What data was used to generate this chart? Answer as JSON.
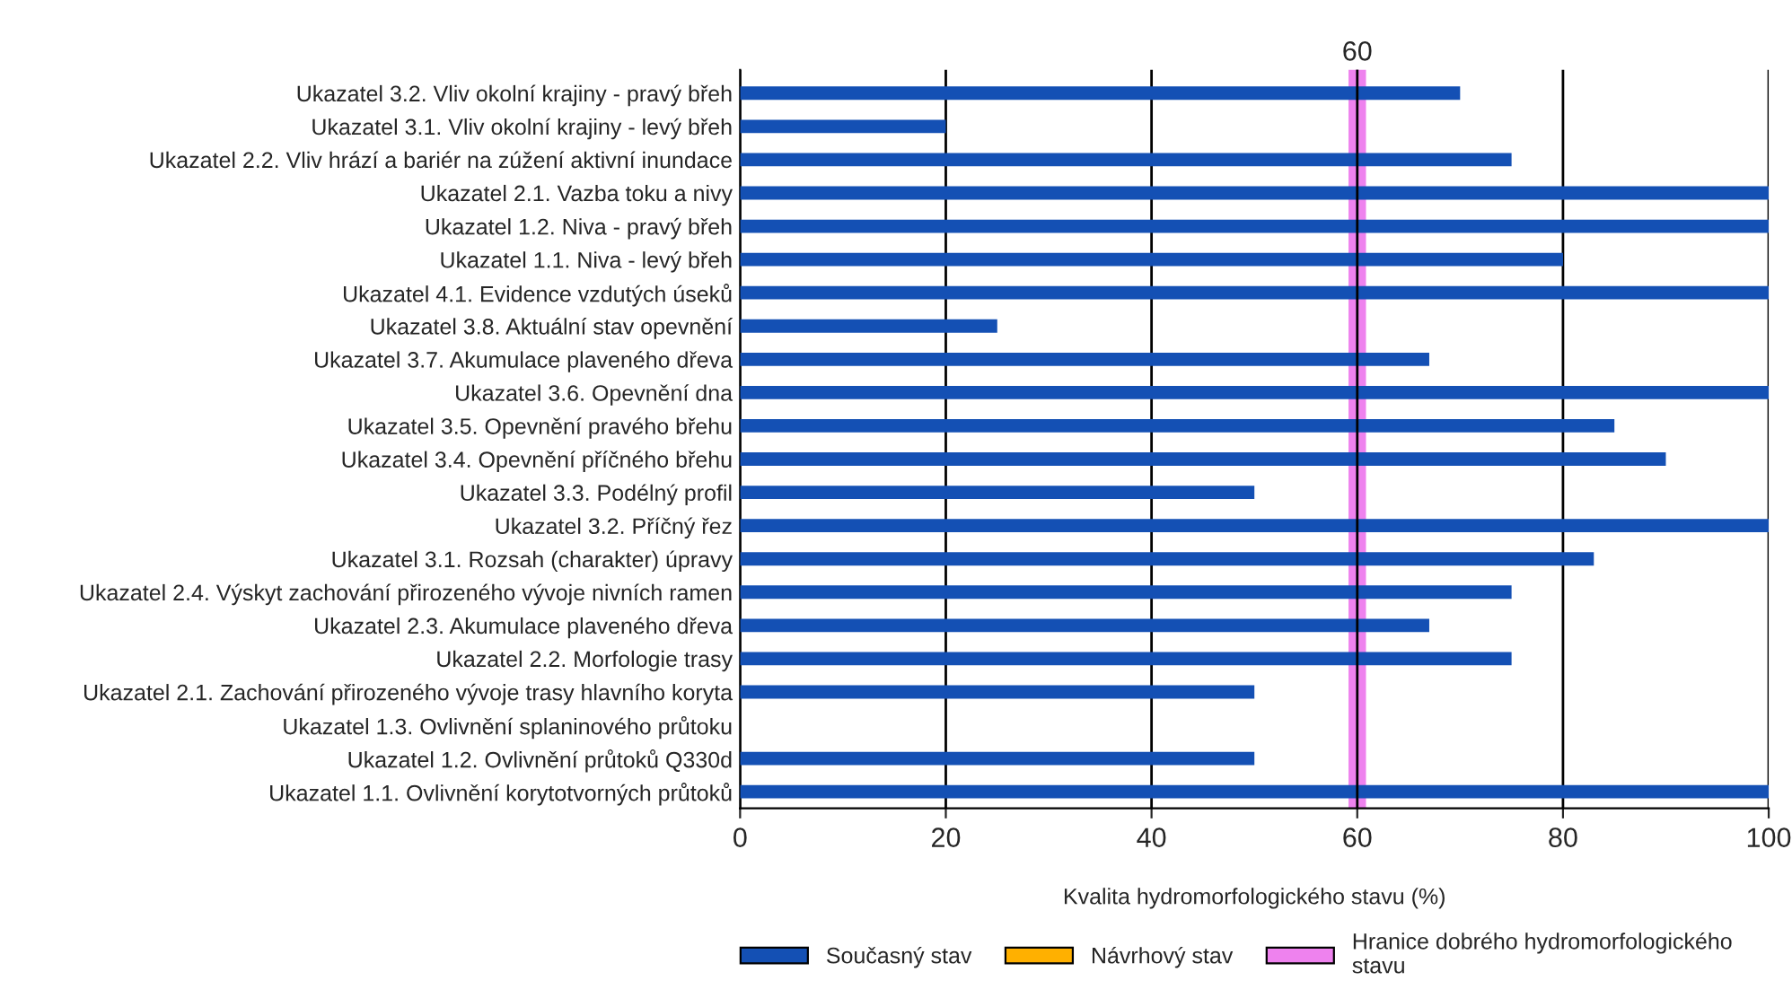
{
  "chart_data": {
    "type": "bar",
    "orientation": "horizontal",
    "categories": [
      "Ukazatel 3.2. Vliv okolní krajiny - pravý břeh",
      "Ukazatel 3.1. Vliv okolní krajiny - levý břeh",
      "Ukazatel 2.2. Vliv hrází a bariér na zúžení aktivní inundace",
      "Ukazatel 2.1. Vazba toku a nivy",
      "Ukazatel 1.2. Niva - pravý břeh",
      "Ukazatel 1.1. Niva - levý břeh",
      "Ukazatel 4.1. Evidence vzdutých úseků",
      "Ukazatel 3.8. Aktuální stav opevnění",
      "Ukazatel 3.7. Akumulace plaveného dřeva",
      "Ukazatel 3.6. Opevnění dna",
      "Ukazatel 3.5. Opevnění pravého břehu",
      "Ukazatel 3.4. Opevnění příčného břehu",
      "Ukazatel 3.3. Podélný profil",
      "Ukazatel 3.2. Příčný řez",
      "Ukazatel 3.1. Rozsah (charakter) úpravy",
      "Ukazatel 2.4. Výskyt zachování přirozeného vývoje nivních ramen",
      "Ukazatel 2.3. Akumulace plaveného dřeva",
      "Ukazatel 2.2. Morfologie trasy",
      "Ukazatel 2.1. Zachování přirozeného vývoje trasy hlavního koryta",
      "Ukazatel 1.3. Ovlivnění splaninového průtoku",
      "Ukazatel 1.2. Ovlivnění průtoků Q330d",
      "Ukazatel 1.1. Ovlivnění korytotvorných průtoků"
    ],
    "series": [
      {
        "name": "Současný stav",
        "color": "#1450b4",
        "values": [
          70,
          20,
          75,
          100,
          100,
          80,
          100,
          25,
          67,
          100,
          85,
          90,
          50,
          100,
          83,
          75,
          67,
          75,
          50,
          null,
          50,
          100
        ]
      },
      {
        "name": "Návrhový stav",
        "color": "#ffb000",
        "values": [
          null,
          null,
          null,
          null,
          null,
          null,
          null,
          null,
          null,
          null,
          null,
          null,
          null,
          null,
          null,
          null,
          null,
          null,
          null,
          null,
          null,
          null
        ]
      }
    ],
    "xlabel": "Kvalita hydromorfologického stavu (%)",
    "xlim": [
      0,
      100
    ],
    "xticks": [
      0,
      20,
      40,
      60,
      80,
      100
    ],
    "grid": "x",
    "legend": "bottom",
    "annotations": [
      "60"
    ],
    "ref_lines": [
      {
        "axis": "x",
        "value": 60,
        "label": "Hranice dobrého hydromorfologického stavu",
        "color": "#ee82ee"
      }
    ]
  }
}
